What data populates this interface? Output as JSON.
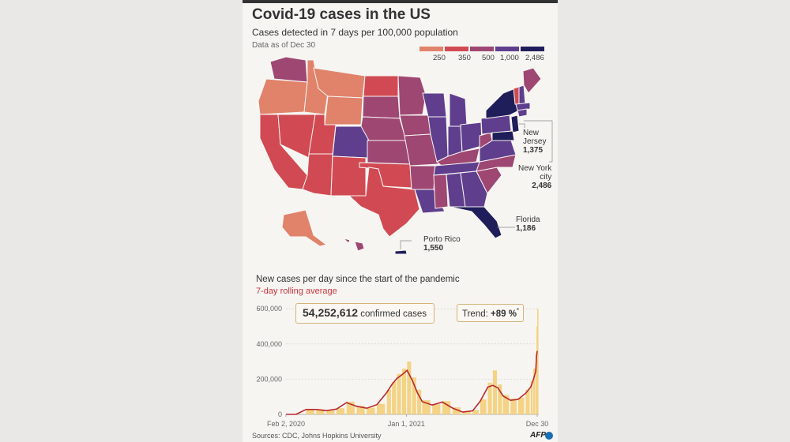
{
  "title": "Covid-19 cases in the US",
  "subtitle": "Cases detected in 7 days per 100,000 population",
  "as_of": "Data as of Dec 30",
  "legend": {
    "labels": [
      "250",
      "350",
      "500",
      "1,000",
      "2,486"
    ],
    "colors": [
      "#e0836a",
      "#d14a53",
      "#9e4773",
      "#5f3e8e",
      "#1f1d5a"
    ]
  },
  "callouts": {
    "new_jersey": {
      "name": "New\nJersey",
      "value": "1,375"
    },
    "new_york": {
      "name": "New York\ncity",
      "value": "2,486"
    },
    "florida": {
      "name": "Florida",
      "value": "1,186"
    },
    "puerto_rico": {
      "name": "Porto Rico",
      "value": "1,550"
    }
  },
  "chart_header": {
    "title": "New cases per day since the start of the pandemic",
    "subtitle": "7-day rolling average"
  },
  "total_box": {
    "number": "54,252,612",
    "label": "confirmed cases"
  },
  "trend_box": {
    "label": "Trend: ",
    "value": "+89 %",
    "mark": "*"
  },
  "sources": "Sources: CDC, Johns Hopkins University",
  "logo": "AFP",
  "colors": {
    "bars": "#f3cf78",
    "line": "#b8292f",
    "subtitle": "#c9363e"
  },
  "chart_data": {
    "type": "bar",
    "title": "New cases per day since the start of the pandemic",
    "ylim": [
      0,
      650000
    ],
    "y_ticks": [
      0,
      200000,
      400000,
      600000
    ],
    "y_tick_labels": [
      "0",
      "200,000",
      "400,000",
      "600,000"
    ],
    "x_tick_labels": [
      "Feb 2, 2020",
      "Jan 1, 2021",
      "Dec 30"
    ],
    "x_tick_dates": [
      "2020-02-02",
      "2021-01-01",
      "2021-12-30"
    ],
    "grid": true,
    "series": [
      {
        "name": "New cases per day",
        "type": "bar",
        "x": [
          "2020-02-02",
          "2020-03-01",
          "2020-03-29",
          "2020-04-26",
          "2020-05-24",
          "2020-06-21",
          "2020-07-19",
          "2020-08-16",
          "2020-09-13",
          "2020-10-11",
          "2020-11-08",
          "2020-11-22",
          "2020-12-06",
          "2020-12-20",
          "2021-01-03",
          "2021-01-17",
          "2021-01-31",
          "2021-02-14",
          "2021-03-14",
          "2021-04-11",
          "2021-05-09",
          "2021-06-06",
          "2021-07-04",
          "2021-07-25",
          "2021-08-15",
          "2021-08-29",
          "2021-09-12",
          "2021-09-26",
          "2021-10-17",
          "2021-11-07",
          "2021-11-28",
          "2021-12-12",
          "2021-12-19",
          "2021-12-26",
          "2021-12-28",
          "2021-12-30"
        ],
        "values": [
          0,
          1000,
          32000,
          30000,
          22000,
          35000,
          72000,
          48000,
          38000,
          60000,
          140000,
          185000,
          230000,
          260000,
          300000,
          210000,
          140000,
          80000,
          58000,
          75000,
          40000,
          17000,
          25000,
          85000,
          180000,
          250000,
          170000,
          110000,
          90000,
          95000,
          140000,
          190000,
          260000,
          350000,
          500000,
          600000
        ]
      },
      {
        "name": "7-day rolling average",
        "type": "line",
        "x": [
          "2020-02-02",
          "2020-03-01",
          "2020-03-29",
          "2020-04-26",
          "2020-05-24",
          "2020-06-21",
          "2020-07-19",
          "2020-08-16",
          "2020-09-13",
          "2020-10-11",
          "2020-11-08",
          "2020-11-22",
          "2020-12-06",
          "2020-12-20",
          "2021-01-03",
          "2021-01-17",
          "2021-01-31",
          "2021-02-14",
          "2021-03-14",
          "2021-04-11",
          "2021-05-09",
          "2021-06-06",
          "2021-07-04",
          "2021-07-25",
          "2021-08-15",
          "2021-08-29",
          "2021-09-12",
          "2021-09-26",
          "2021-10-17",
          "2021-11-07",
          "2021-11-28",
          "2021-12-12",
          "2021-12-19",
          "2021-12-26",
          "2021-12-28",
          "2021-12-30"
        ],
        "values": [
          0,
          500,
          28000,
          28000,
          21000,
          30000,
          67000,
          46000,
          35000,
          55000,
          125000,
          170000,
          205000,
          225000,
          250000,
          195000,
          125000,
          72000,
          53000,
          70000,
          36000,
          13000,
          20000,
          75000,
          155000,
          165000,
          150000,
          105000,
          80000,
          85000,
          120000,
          155000,
          195000,
          245000,
          330000,
          360000
        ]
      }
    ]
  }
}
